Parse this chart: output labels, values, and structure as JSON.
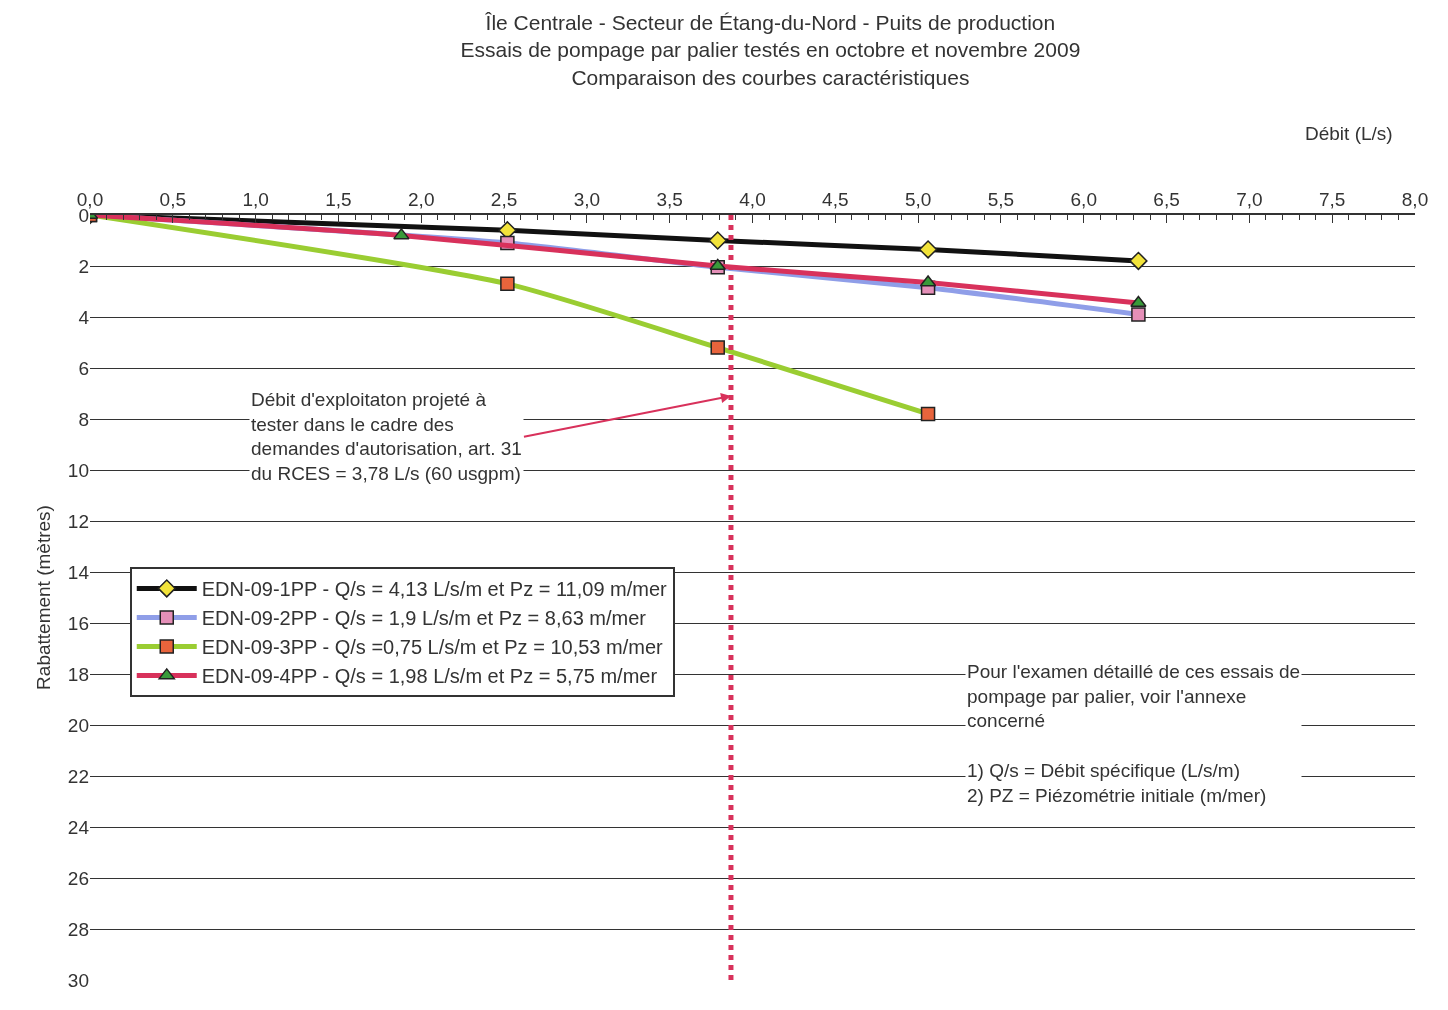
{
  "chart_data": {
    "type": "line",
    "title": "Île Centrale - Secteur de Étang-du-Nord - Puits de production\nEssais de pompage par palier testés en octobre et novembre 2009\nComparaison des courbes caractéristiques",
    "xlabel": "Débit (L/s)",
    "ylabel": "Rabattement (mètres)",
    "xlim": [
      0,
      8
    ],
    "xticks": [
      {
        "value": 0,
        "label": "0,0"
      },
      {
        "value": 0.5,
        "label": "0,5"
      },
      {
        "value": 1,
        "label": "1,0"
      },
      {
        "value": 1.5,
        "label": "1,5"
      },
      {
        "value": 2,
        "label": "2,0"
      },
      {
        "value": 2.5,
        "label": "2,5"
      },
      {
        "value": 3,
        "label": "3,0"
      },
      {
        "value": 3.5,
        "label": "3,5"
      },
      {
        "value": 4,
        "label": "4,0"
      },
      {
        "value": 4.5,
        "label": "4,5"
      },
      {
        "value": 5,
        "label": "5,0"
      },
      {
        "value": 5.5,
        "label": "5,5"
      },
      {
        "value": 6,
        "label": "6,0"
      },
      {
        "value": 6.5,
        "label": "6,5"
      },
      {
        "value": 7,
        "label": "7,0"
      },
      {
        "value": 7.5,
        "label": "7,5"
      },
      {
        "value": 8,
        "label": "8,0"
      }
    ],
    "ylim": [
      30,
      0
    ],
    "yticks": [
      0,
      2,
      4,
      6,
      8,
      10,
      12,
      14,
      16,
      18,
      20,
      22,
      24,
      26,
      28,
      30
    ],
    "grid": "y",
    "legend": "left",
    "line_style": "solid",
    "series": [
      {
        "name": "EDN-09-1PP - Q/s = 4,13 L/s/m et Pz = 11,09 m/mer",
        "color": "#111111",
        "marker": "diamond",
        "colors": [
          "#f2e33a",
          "#f2e33a",
          "#f2e33a",
          "#f2e33a",
          "#f2e33a"
        ],
        "x": [
          0,
          2.52,
          3.79,
          5.06,
          6.33
        ],
        "values": [
          0,
          0.6,
          1.0,
          1.35,
          1.8
        ]
      },
      {
        "name": "EDN-09-2PP - Q/s = 1,9 L/s/m et Pz = 8,63 m/mer",
        "color": "#8f9ee8",
        "marker": "square",
        "colors": [
          "#e58fb8",
          "#e58fb8",
          "#e58fb8",
          "#e58fb8",
          "#e58fb8"
        ],
        "x": [
          0,
          2.52,
          3.79,
          5.06,
          6.33
        ],
        "values": [
          0,
          1.1,
          2.05,
          2.85,
          3.9
        ]
      },
      {
        "name": "EDN-09-3PP - Q/s =0,75 L/s/m et Pz = 10,53 m/mer",
        "color": "#9acd32",
        "marker": "square",
        "colors": [
          "#e8643c",
          "#e8643c",
          "#e8643c",
          "#e8643c"
        ],
        "x": [
          0,
          2.52,
          3.79,
          5.06
        ],
        "values": [
          0,
          2.7,
          5.2,
          7.8
        ]
      },
      {
        "name": "EDN-09-4PP - Q/s = 1,98 L/s/m et Pz = 5,75 m/mer",
        "color": "#d8315b",
        "marker": "triangle",
        "colors": [
          "#3a9a3a",
          "#3a9a3a",
          "#3a9a3a",
          "#3a9a3a",
          "#3a9a3a"
        ],
        "x": [
          0,
          1.88,
          3.79,
          5.06,
          6.33
        ],
        "values": [
          0,
          0.8,
          2.0,
          2.65,
          3.45
        ]
      }
    ],
    "ref_lines": [
      {
        "axis": "x",
        "value": 3.87,
        "color": "#d8315b",
        "line_style": "dotted"
      }
    ],
    "annotations": [
      {
        "text": "Débit d'exploitaton projeté à\ntester dans le cadre des\ndemandes d'autorisation, art. 31\ndu RCES = 3,78 L/s (60 usgpm)",
        "x": 3.87,
        "y": 7.1
      },
      "Pour l'examen détaillé de ces essais de\npompage par palier, voir l'annexe\nconcerné\n\n1) Q/s = Débit spécifique (L/s/m)\n2) PZ = Piézométrie initiale (m/mer)"
    ]
  }
}
